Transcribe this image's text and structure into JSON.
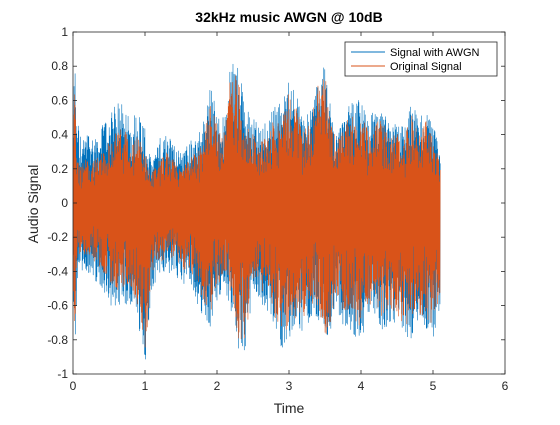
{
  "chart_data": {
    "type": "line",
    "title": "32kHz music AWGN @ 10dB",
    "xlabel": "Time",
    "ylabel": "Audio Signal",
    "xlim": [
      0,
      6
    ],
    "ylim": [
      -1,
      1
    ],
    "xticks": [
      0,
      1,
      2,
      3,
      4,
      5,
      6
    ],
    "yticks": [
      1,
      0.8,
      0.6,
      0.4,
      0.2,
      0,
      -0.2,
      -0.4,
      -0.6,
      -0.8,
      -1
    ],
    "grid": false,
    "legend_position": "top-right",
    "series": [
      {
        "name": "Signal with AWGN",
        "color": "#0072BD",
        "envelope": {
          "t": [
            0,
            0.02,
            0.05,
            0.08,
            0.12,
            0.2,
            0.3,
            0.4,
            0.5,
            0.6,
            0.7,
            0.8,
            0.9,
            1.0,
            1.05,
            1.1,
            1.2,
            1.3,
            1.4,
            1.5,
            1.6,
            1.7,
            1.8,
            1.9,
            2.0,
            2.1,
            2.2,
            2.3,
            2.4,
            2.5,
            2.6,
            2.7,
            2.8,
            2.9,
            3.0,
            3.1,
            3.2,
            3.3,
            3.4,
            3.5,
            3.6,
            3.7,
            3.8,
            3.9,
            4.0,
            4.1,
            4.2,
            4.3,
            4.4,
            4.5,
            4.6,
            4.7,
            4.8,
            4.9,
            5.0,
            5.05,
            5.1
          ],
          "upper": [
            0.15,
            0.95,
            0.55,
            0.45,
            0.35,
            0.42,
            0.38,
            0.45,
            0.52,
            0.58,
            0.6,
            0.5,
            0.55,
            0.45,
            0.3,
            0.25,
            0.38,
            0.42,
            0.35,
            0.3,
            0.35,
            0.4,
            0.45,
            0.7,
            0.55,
            0.5,
            0.85,
            0.8,
            0.55,
            0.52,
            0.45,
            0.5,
            0.6,
            0.58,
            0.72,
            0.65,
            0.5,
            0.55,
            0.75,
            0.8,
            0.5,
            0.45,
            0.55,
            0.6,
            0.6,
            0.5,
            0.55,
            0.55,
            0.45,
            0.5,
            0.45,
            0.6,
            0.5,
            0.55,
            0.45,
            0.4,
            0.3
          ],
          "lower": [
            -0.15,
            -0.98,
            -0.6,
            -0.5,
            -0.42,
            -0.4,
            -0.45,
            -0.5,
            -0.58,
            -0.65,
            -0.6,
            -0.6,
            -0.7,
            -0.95,
            -0.75,
            -0.5,
            -0.45,
            -0.4,
            -0.45,
            -0.5,
            -0.45,
            -0.55,
            -0.7,
            -0.75,
            -0.6,
            -0.5,
            -0.65,
            -0.9,
            -0.85,
            -0.55,
            -0.6,
            -0.65,
            -0.75,
            -0.85,
            -0.8,
            -0.75,
            -0.75,
            -0.7,
            -0.7,
            -0.85,
            -0.75,
            -0.7,
            -0.72,
            -0.78,
            -0.8,
            -0.7,
            -0.65,
            -0.75,
            -0.7,
            -0.75,
            -0.78,
            -0.8,
            -0.72,
            -0.75,
            -0.8,
            -0.7,
            -0.6
          ]
        }
      },
      {
        "name": "Original Signal",
        "color": "#D95319",
        "envelope": {
          "t": [
            0,
            0.02,
            0.05,
            0.08,
            0.12,
            0.2,
            0.3,
            0.4,
            0.5,
            0.6,
            0.7,
            0.8,
            0.9,
            1.0,
            1.05,
            1.1,
            1.2,
            1.3,
            1.4,
            1.5,
            1.6,
            1.7,
            1.8,
            1.9,
            2.0,
            2.1,
            2.2,
            2.3,
            2.4,
            2.5,
            2.6,
            2.7,
            2.8,
            2.9,
            3.0,
            3.1,
            3.2,
            3.3,
            3.4,
            3.5,
            3.6,
            3.7,
            3.8,
            3.9,
            4.0,
            4.1,
            4.2,
            4.3,
            4.4,
            4.5,
            4.6,
            4.7,
            4.8,
            4.9,
            5.0,
            5.05,
            5.1
          ],
          "upper": [
            0.1,
            0.85,
            0.35,
            0.28,
            0.22,
            0.28,
            0.25,
            0.3,
            0.35,
            0.42,
            0.45,
            0.35,
            0.4,
            0.3,
            0.2,
            0.18,
            0.25,
            0.3,
            0.25,
            0.2,
            0.25,
            0.3,
            0.35,
            0.6,
            0.45,
            0.42,
            0.8,
            0.72,
            0.45,
            0.42,
            0.35,
            0.42,
            0.5,
            0.48,
            0.65,
            0.58,
            0.42,
            0.48,
            0.7,
            0.75,
            0.42,
            0.38,
            0.48,
            0.52,
            0.52,
            0.42,
            0.48,
            0.48,
            0.38,
            0.42,
            0.38,
            0.52,
            0.42,
            0.48,
            0.38,
            0.32,
            0.22
          ],
          "lower": [
            -0.1,
            -0.9,
            -0.45,
            -0.35,
            -0.3,
            -0.3,
            -0.35,
            -0.4,
            -0.45,
            -0.52,
            -0.5,
            -0.5,
            -0.6,
            -0.88,
            -0.65,
            -0.4,
            -0.35,
            -0.32,
            -0.35,
            -0.4,
            -0.38,
            -0.45,
            -0.6,
            -0.68,
            -0.5,
            -0.42,
            -0.55,
            -0.82,
            -0.78,
            -0.45,
            -0.5,
            -0.55,
            -0.68,
            -0.78,
            -0.72,
            -0.68,
            -0.68,
            -0.62,
            -0.62,
            -0.78,
            -0.68,
            -0.62,
            -0.65,
            -0.7,
            -0.72,
            -0.62,
            -0.58,
            -0.68,
            -0.62,
            -0.68,
            -0.7,
            -0.72,
            -0.65,
            -0.68,
            -0.72,
            -0.62,
            -0.52
          ]
        }
      }
    ]
  }
}
